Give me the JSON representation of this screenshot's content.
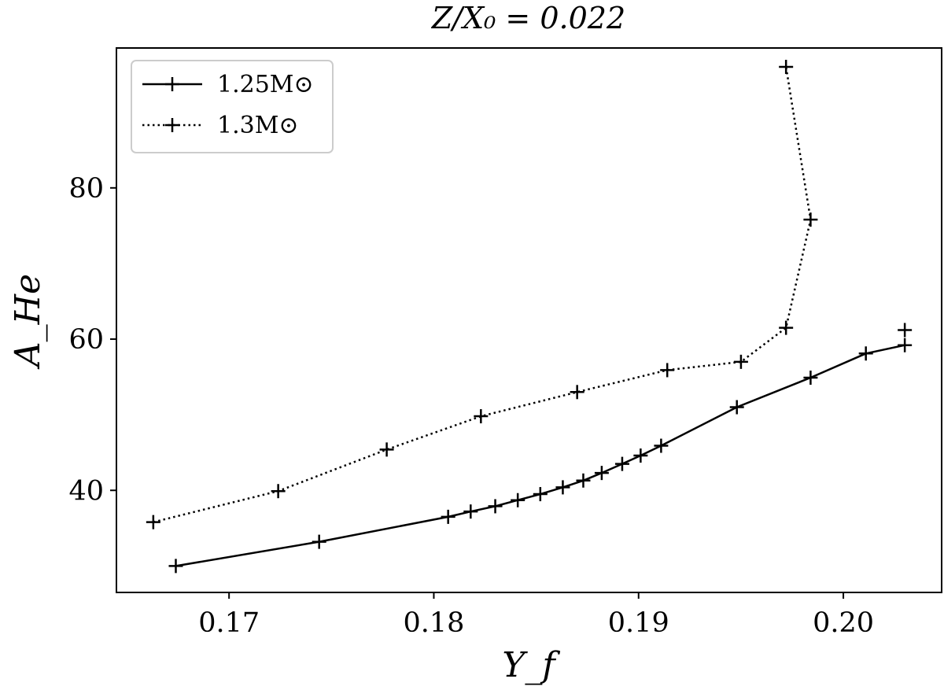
{
  "chart_data": {
    "type": "line",
    "title": "Z/X₀ = 0.022",
    "xlabel": "Y_f",
    "ylabel": "A_He",
    "xlim": [
      0.1645,
      0.2048
    ],
    "ylim": [
      26.5,
      98.5
    ],
    "xticks": [
      0.17,
      0.18,
      0.19,
      0.2
    ],
    "xtick_labels": [
      "0.17",
      "0.18",
      "0.19",
      "0.20"
    ],
    "yticks": [
      40,
      60,
      80
    ],
    "ytick_labels": [
      "40",
      "60",
      "80"
    ],
    "grid": false,
    "legend_position": "top-left",
    "series": [
      {
        "name": "1.25M⊙",
        "linestyle": "solid",
        "marker": "+",
        "color": "#000000",
        "x": [
          0.1674,
          0.1744,
          0.1807,
          0.1818,
          0.183,
          0.1841,
          0.1852,
          0.1863,
          0.1873,
          0.1882,
          0.1892,
          0.1901,
          0.1911,
          0.1948,
          0.1984,
          0.2011,
          0.203
        ],
        "y": [
          30.0,
          33.2,
          36.5,
          37.2,
          37.9,
          38.7,
          39.5,
          40.4,
          41.3,
          42.3,
          43.5,
          44.6,
          45.9,
          51.0,
          54.9,
          58.1,
          59.2
        ]
      },
      {
        "name": "1.3M⊙",
        "linestyle": "dotted",
        "marker": "+",
        "color": "#000000",
        "x": [
          0.1663,
          0.1724,
          0.1777,
          0.1823,
          0.187,
          0.1914,
          0.195,
          0.1972,
          0.1984,
          0.1972
        ],
        "y": [
          35.8,
          39.9,
          45.4,
          49.8,
          53.0,
          55.9,
          57.0,
          61.5,
          75.8,
          96.0
        ]
      }
    ],
    "extra_points": [
      {
        "x": 0.203,
        "y": 61.2,
        "marker": "+",
        "color": "#000000"
      }
    ]
  }
}
